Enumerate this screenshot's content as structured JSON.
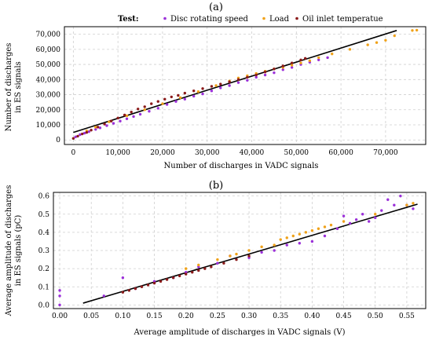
{
  "chart_data": [
    {
      "type": "scatter",
      "title": "(a)",
      "legend": {
        "title": "Test:",
        "placement": "top",
        "entries": [
          "Disc rotating speed",
          "Load",
          "Oil inlet temperatue"
        ]
      },
      "xlabel": "Number of discharges in VADC signals",
      "ylabel": [
        "Number of discharges",
        "in ES signals"
      ],
      "xlim": [
        -2000,
        79000
      ],
      "ylim": [
        -3000,
        75000
      ],
      "xticks": [
        0,
        10000,
        20000,
        30000,
        40000,
        50000,
        60000,
        70000
      ],
      "xtick_labels": [
        "0",
        "10,000",
        "20,000",
        "30,000",
        "40,000",
        "50,000",
        "60,000",
        "70,000"
      ],
      "yticks": [
        0,
        10000,
        20000,
        30000,
        40000,
        50000,
        60000,
        70000
      ],
      "ytick_labels": [
        "0",
        "10,000",
        "20,000",
        "30,000",
        "40,000",
        "50,000",
        "60,000",
        "70,000"
      ],
      "grid": true,
      "fit_line": {
        "x": [
          0,
          72500
        ],
        "y": [
          5000,
          72500
        ]
      },
      "series": [
        {
          "name": "Disc rotating speed",
          "color": "#9b30d9",
          "x": [
            500,
            1500,
            2500,
            3500,
            5000,
            6000,
            7500,
            9000,
            10500,
            12000,
            13500,
            15000,
            17000,
            19000,
            21000,
            23000,
            25000,
            27000,
            29000,
            31000,
            33000,
            35000,
            37000,
            39000,
            41000,
            43000,
            45000,
            47000,
            49000,
            51000,
            53000,
            55000,
            57000
          ],
          "y": [
            2000,
            3500,
            4500,
            5500,
            7000,
            8000,
            9500,
            11000,
            12500,
            14000,
            15500,
            17000,
            19000,
            21000,
            23500,
            25500,
            27000,
            29000,
            30500,
            32500,
            34500,
            36000,
            38000,
            39500,
            41500,
            43000,
            44500,
            46500,
            48000,
            50000,
            51500,
            53000,
            54500
          ]
        },
        {
          "name": "Load",
          "color": "#f0a21a",
          "x": [
            3000,
            5000,
            8000,
            12000,
            16000,
            20000,
            24000,
            28000,
            32000,
            35000,
            37000,
            39000,
            41000,
            43000,
            45000,
            47000,
            49000,
            51000,
            53000,
            55000,
            58000,
            62000,
            66000,
            68000,
            70000,
            72000,
            76000,
            77000
          ],
          "y": [
            6000,
            8500,
            12000,
            16000,
            20000,
            24000,
            28000,
            32000,
            36000,
            39000,
            41000,
            42500,
            44000,
            45500,
            47000,
            48000,
            49500,
            51000,
            52500,
            54500,
            57000,
            60000,
            63000,
            64500,
            66000,
            69000,
            72500,
            72700
          ]
        },
        {
          "name": "Oil inlet temperatue",
          "color": "#8b1a1a",
          "x": [
            0,
            1000,
            2000,
            3000,
            4000,
            5500,
            7000,
            8500,
            10000,
            11500,
            13000,
            14500,
            16000,
            17500,
            19000,
            20500,
            22000,
            23500,
            25000,
            27000,
            29000,
            31000,
            33000,
            35000,
            37000,
            39000,
            41000,
            43000,
            45000,
            47000,
            49000,
            51000,
            52000
          ],
          "y": [
            1000,
            2500,
            4000,
            5000,
            6500,
            8500,
            10500,
            12500,
            14500,
            16500,
            18500,
            20500,
            22000,
            24000,
            25500,
            27000,
            28500,
            29500,
            31000,
            32500,
            34000,
            35500,
            37000,
            38500,
            40000,
            41500,
            43000,
            45000,
            47000,
            49000,
            51000,
            53000,
            54000
          ]
        }
      ]
    },
    {
      "type": "scatter",
      "title": "(b)",
      "xlabel": "Average amplitude of discharges in VADC signals (V)",
      "ylabel": [
        "Average amplitude of discharges",
        "in ES signals (pC)"
      ],
      "xlim": [
        -0.01,
        0.58
      ],
      "ylim": [
        -0.02,
        0.62
      ],
      "xticks": [
        0.0,
        0.05,
        0.1,
        0.15,
        0.2,
        0.25,
        0.3,
        0.35,
        0.4,
        0.45,
        0.5,
        0.55
      ],
      "xtick_labels": [
        "0.00",
        "0.05",
        "0.10",
        "0.15",
        "0.20",
        "0.25",
        "0.30",
        "0.35",
        "0.40",
        "0.45",
        "0.50",
        "0.55"
      ],
      "yticks": [
        0.0,
        0.1,
        0.2,
        0.3,
        0.4,
        0.5,
        0.6
      ],
      "ytick_labels": [
        "0.0",
        "0.1",
        "0.2",
        "0.3",
        "0.4",
        "0.5",
        "0.6"
      ],
      "grid": true,
      "fit_line": {
        "x": [
          0.037,
          0.567
        ],
        "y": [
          0.01,
          0.555
        ]
      },
      "series": [
        {
          "name": "Disc rotating speed",
          "color": "#9b30d9",
          "x": [
            0.0,
            0.0,
            0.0,
            0.07,
            0.1,
            0.12,
            0.15,
            0.18,
            0.2,
            0.22,
            0.25,
            0.27,
            0.3,
            0.32,
            0.34,
            0.36,
            0.38,
            0.4,
            0.42,
            0.44,
            0.45,
            0.46,
            0.47,
            0.48,
            0.49,
            0.5,
            0.51,
            0.52,
            0.53,
            0.54,
            0.55,
            0.56
          ],
          "y": [
            0.0,
            0.05,
            0.08,
            0.05,
            0.15,
            0.09,
            0.13,
            0.15,
            0.18,
            0.21,
            0.23,
            0.27,
            0.26,
            0.29,
            0.3,
            0.33,
            0.34,
            0.35,
            0.38,
            0.42,
            0.49,
            0.45,
            0.47,
            0.5,
            0.46,
            0.48,
            0.52,
            0.58,
            0.55,
            0.6,
            0.55,
            0.53
          ]
        },
        {
          "name": "Load",
          "color": "#f0a21a",
          "x": [
            0.2,
            0.22,
            0.25,
            0.27,
            0.28,
            0.3,
            0.32,
            0.34,
            0.35,
            0.36,
            0.37,
            0.38,
            0.39,
            0.4,
            0.41,
            0.42,
            0.43,
            0.45,
            0.5,
            0.55,
            0.56
          ],
          "y": [
            0.2,
            0.22,
            0.25,
            0.27,
            0.28,
            0.3,
            0.32,
            0.33,
            0.36,
            0.37,
            0.38,
            0.39,
            0.4,
            0.41,
            0.42,
            0.43,
            0.44,
            0.46,
            0.5,
            0.55,
            0.56
          ]
        },
        {
          "name": "Oil inlet temperatue",
          "color": "#8b1a1a",
          "x": [
            0.1,
            0.11,
            0.12,
            0.13,
            0.14,
            0.15,
            0.16,
            0.17,
            0.18,
            0.19,
            0.2,
            0.21,
            0.22,
            0.23,
            0.24,
            0.26,
            0.28,
            0.3
          ],
          "y": [
            0.07,
            0.08,
            0.09,
            0.1,
            0.11,
            0.12,
            0.13,
            0.14,
            0.15,
            0.16,
            0.17,
            0.18,
            0.19,
            0.2,
            0.21,
            0.23,
            0.25,
            0.27
          ]
        }
      ]
    }
  ]
}
